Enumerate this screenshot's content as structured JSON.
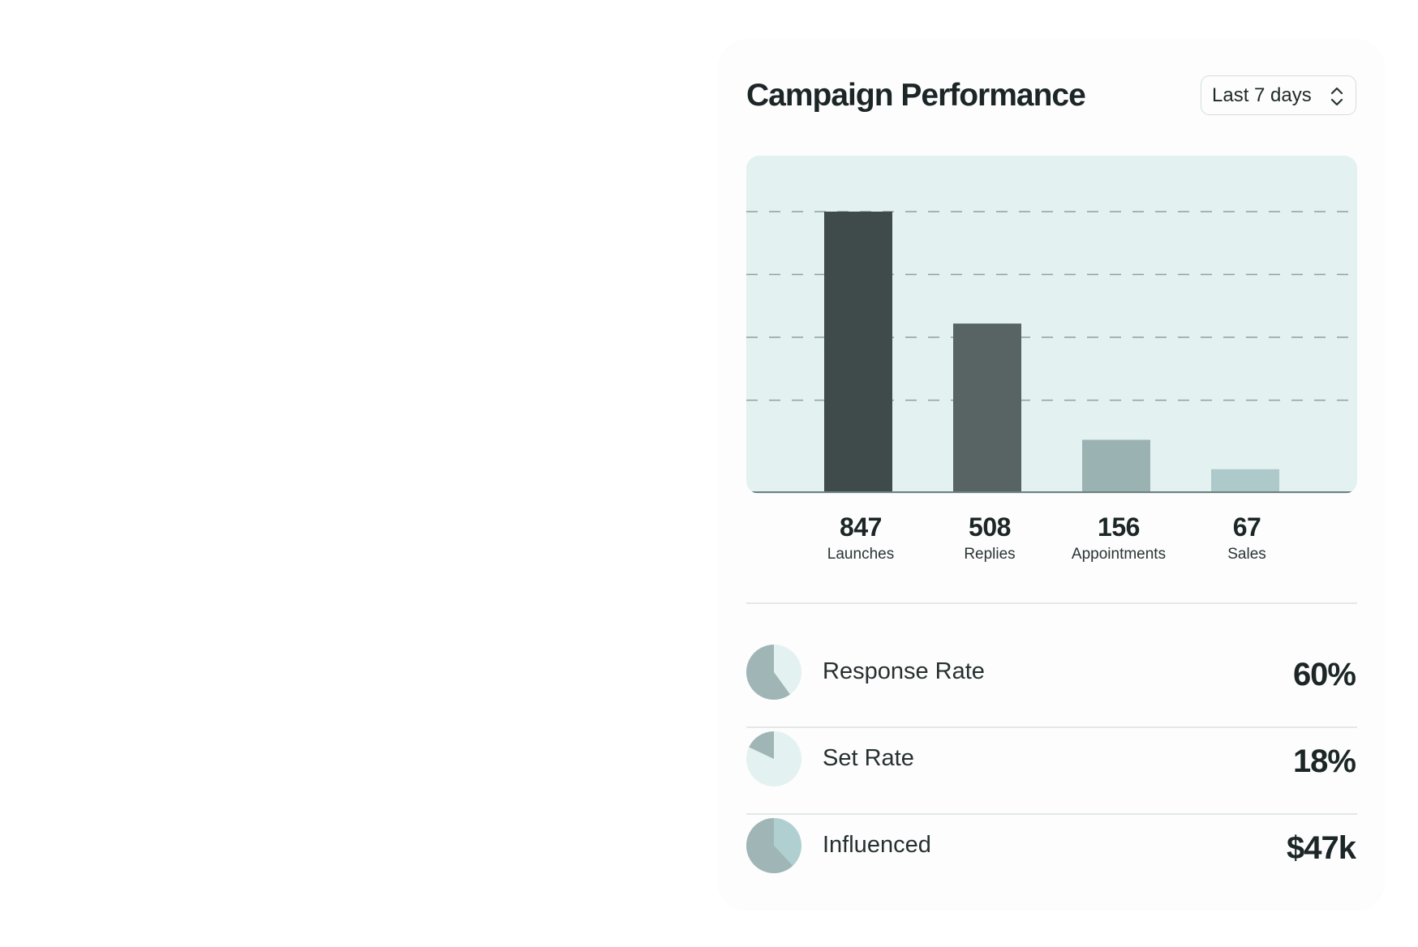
{
  "card": {
    "title": "Campaign Performance",
    "range": {
      "selected": "Last 7 days"
    }
  },
  "chart_data": {
    "type": "bar",
    "categories": [
      "Launches",
      "Replies",
      "Appointments",
      "Sales"
    ],
    "values": [
      847,
      508,
      156,
      67
    ],
    "ylim": [
      0,
      847
    ],
    "grid": true,
    "colors": [
      "#3f4b4b",
      "#586464",
      "#9ab3b2",
      "#adc9c9"
    ]
  },
  "metrics": [
    {
      "value": "847",
      "label": "Launches"
    },
    {
      "value": "508",
      "label": "Replies"
    },
    {
      "value": "156",
      "label": "Appointments"
    },
    {
      "value": "67",
      "label": "Sales"
    }
  ],
  "rates": [
    {
      "label": "Response Rate",
      "value": "60%",
      "fraction": 0.6,
      "pie_color": "#a0b5b5",
      "pie_bg": "#e3f1f1"
    },
    {
      "label": "Set Rate",
      "value": "18%",
      "fraction": 0.18,
      "pie_color": "#a0b5b5",
      "pie_bg": "#e3f1f1"
    },
    {
      "label": "Influenced",
      "value": "$47k",
      "fraction": 0.62,
      "pie_color": "#a0b5b5",
      "pie_bg": "#b0cfd0"
    }
  ]
}
